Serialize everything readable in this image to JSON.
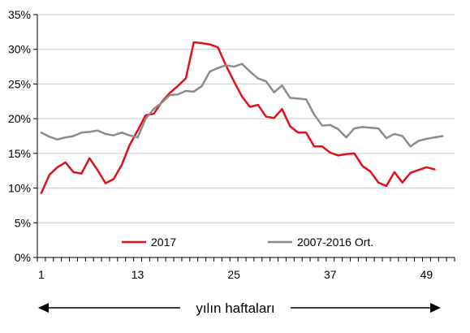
{
  "chart_data": {
    "type": "line",
    "title": "",
    "xlabel": "yılın haftaları",
    "ylabel": "",
    "xlim": [
      1,
      52
    ],
    "ylim": [
      0,
      35
    ],
    "x_ticks": [
      1,
      13,
      25,
      37,
      49
    ],
    "y_ticks": [
      0,
      5,
      10,
      15,
      20,
      25,
      30,
      35
    ],
    "y_tick_labels": [
      "0%",
      "5%",
      "10%",
      "15%",
      "20%",
      "25%",
      "30%",
      "35%"
    ],
    "grid": "horizontal",
    "legend_position": "bottom-inside",
    "series": [
      {
        "name": "2017",
        "color": "#e3101a",
        "x": [
          1,
          2,
          3,
          4,
          5,
          6,
          7,
          8,
          9,
          10,
          11,
          12,
          13,
          14,
          15,
          16,
          17,
          18,
          19,
          20,
          21,
          22,
          23,
          24,
          25,
          26,
          27,
          28,
          29,
          30,
          31,
          32,
          33,
          34,
          35,
          36,
          37,
          38,
          39,
          40,
          41,
          42,
          43,
          44,
          45,
          46,
          47,
          48,
          49,
          50,
          51
        ],
        "values": [
          9.3,
          11.9,
          13.0,
          13.7,
          12.3,
          12.1,
          14.3,
          12.6,
          10.7,
          11.3,
          13.3,
          16.2,
          18.3,
          20.5,
          20.7,
          22.4,
          23.7,
          24.7,
          25.8,
          31.0,
          30.9,
          30.7,
          30.3,
          27.7,
          25.4,
          23.2,
          21.7,
          22.0,
          20.3,
          20.1,
          21.4,
          18.9,
          18.0,
          18.0,
          16.0,
          16.0,
          15.1,
          14.7,
          14.9,
          15.0,
          13.2,
          12.4,
          10.8,
          10.3,
          12.3,
          10.8,
          12.2,
          12.6,
          13.0,
          12.7,
          null
        ]
      },
      {
        "name": "2007-2016 Ort.",
        "color": "#8c8c8c",
        "x": [
          1,
          2,
          3,
          4,
          5,
          6,
          7,
          8,
          9,
          10,
          11,
          12,
          13,
          14,
          15,
          16,
          17,
          18,
          19,
          20,
          21,
          22,
          23,
          24,
          25,
          26,
          27,
          28,
          29,
          30,
          31,
          32,
          33,
          34,
          35,
          36,
          37,
          38,
          39,
          40,
          41,
          42,
          43,
          44,
          45,
          46,
          47,
          48,
          49,
          50,
          51
        ],
        "values": [
          18.0,
          17.4,
          17.0,
          17.3,
          17.5,
          18.0,
          18.1,
          18.3,
          17.8,
          17.6,
          18.0,
          17.6,
          17.3,
          20.0,
          21.4,
          22.3,
          23.4,
          23.5,
          24.0,
          23.9,
          24.7,
          26.8,
          27.3,
          27.7,
          27.5,
          27.9,
          26.8,
          25.8,
          25.4,
          23.8,
          24.8,
          23.0,
          22.9,
          22.8,
          20.6,
          19.0,
          19.1,
          18.5,
          17.3,
          18.6,
          18.8,
          18.7,
          18.6,
          17.2,
          17.8,
          17.5,
          16.0,
          16.8,
          17.1,
          17.3,
          17.5
        ]
      }
    ]
  },
  "legend": {
    "items": [
      {
        "label": "2017",
        "color": "#e3101a"
      },
      {
        "label": "2007-2016 Ort.",
        "color": "#8c8c8c"
      }
    ]
  },
  "axis_title": "yılın haftaları"
}
